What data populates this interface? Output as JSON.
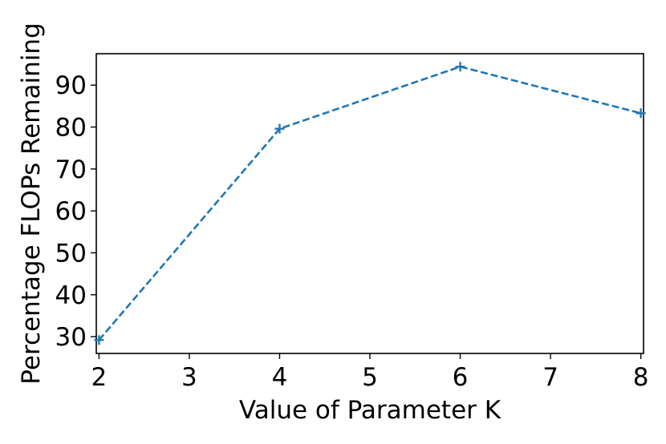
{
  "chart_data": {
    "type": "line",
    "xlabel": "Value of Parameter K",
    "ylabel": "Percentage FLOPs Remaining",
    "x": [
      2,
      4,
      6,
      8
    ],
    "series": [
      {
        "values": [
          29.2,
          79.6,
          94.4,
          83.3
        ]
      }
    ],
    "xlim": [
      1.97,
      8.03
    ],
    "ylim": [
      26.0,
      97.5
    ],
    "xticks": [
      2,
      3,
      4,
      5,
      6,
      7,
      8
    ],
    "yticks": [
      30,
      40,
      50,
      60,
      70,
      80,
      90
    ],
    "line_style": "dashed",
    "marker": "+",
    "color": "#1f77b4",
    "grid": false,
    "legend": "none"
  }
}
